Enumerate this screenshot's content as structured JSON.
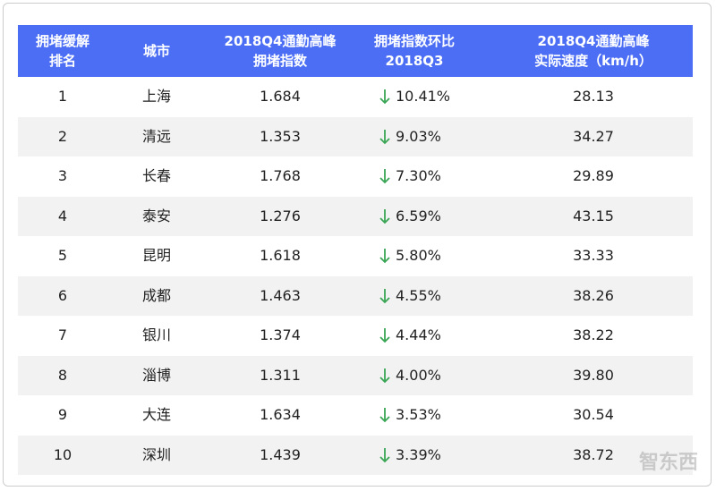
{
  "table": {
    "headers": [
      [
        "拥堵缓解",
        "排名"
      ],
      [
        "城市"
      ],
      [
        "2018Q4通勤高峰",
        "拥堵指数"
      ],
      [
        "拥堵指数环比",
        "2018Q3"
      ],
      [
        "2018Q4通勤高峰",
        "实际速度（km/h）"
      ]
    ],
    "rows": [
      [
        "1",
        "上海",
        "1.684",
        "10.41%",
        "28.13"
      ],
      [
        "2",
        "清远",
        "1.353",
        "9.03%",
        "34.27"
      ],
      [
        "3",
        "长春",
        "1.768",
        "7.30%",
        "29.89"
      ],
      [
        "4",
        "泰安",
        "1.276",
        "6.59%",
        "43.15"
      ],
      [
        "5",
        "昆明",
        "1.618",
        "5.80%",
        "33.33"
      ],
      [
        "6",
        "成都",
        "1.463",
        "4.55%",
        "38.26"
      ],
      [
        "7",
        "银川",
        "1.374",
        "4.44%",
        "38.22"
      ],
      [
        "8",
        "淄博",
        "1.311",
        "4.00%",
        "39.80"
      ],
      [
        "9",
        "大连",
        "1.634",
        "3.53%",
        "30.54"
      ],
      [
        "10",
        "深圳",
        "1.439",
        "3.39%",
        "38.72"
      ]
    ]
  },
  "watermark": "智东西"
}
